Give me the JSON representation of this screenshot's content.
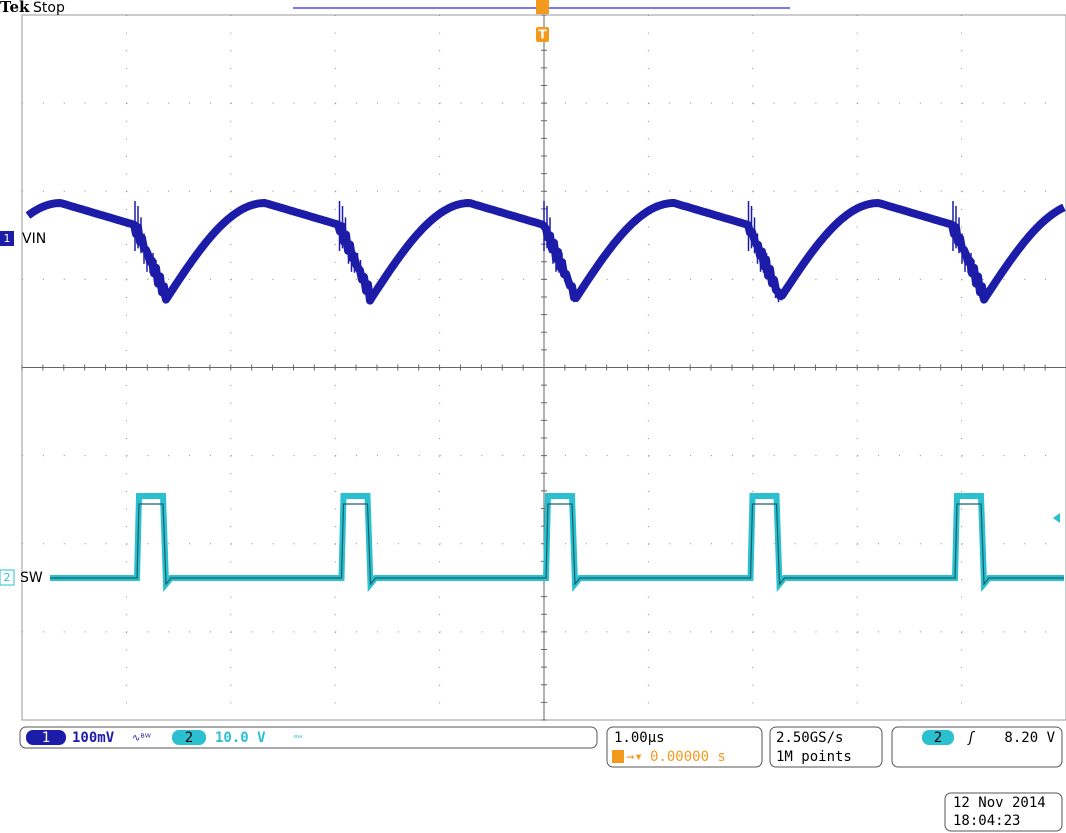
{
  "header": {
    "brand": "Tek",
    "status": "Stop"
  },
  "channels": [
    {
      "marker": "1",
      "label": "VIN"
    },
    {
      "marker": "2",
      "label": "SW"
    }
  ],
  "trigger_marker": "T",
  "status_bar": {
    "ch1_number": "1",
    "ch1_scale": "100mV",
    "ch2_number": "2",
    "ch2_scale": "10.0 V",
    "timebase": "1.00µs",
    "trigger_position": "0.00000 s",
    "sample_rate": "2.50GS/s",
    "record_length": "1M points",
    "trigger_source": "2",
    "trigger_level": "8.20 V"
  },
  "timestamp": {
    "date": "12 Nov 2014",
    "time": "18:04:23"
  }
}
